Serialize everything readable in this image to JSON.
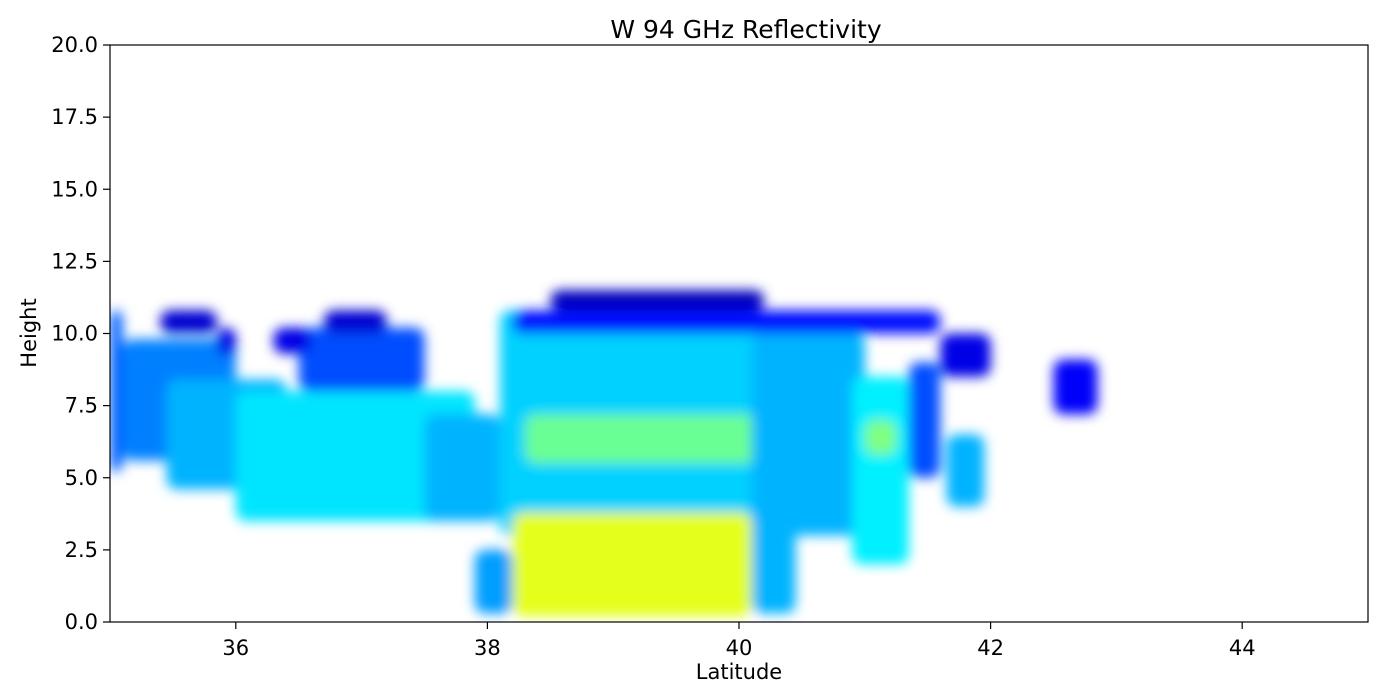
{
  "chart_data": {
    "type": "heatmap",
    "title": "W 94 GHz Reflectivity",
    "xlabel": "Latitude",
    "ylabel": "Height",
    "xlim": [
      35,
      45
    ],
    "ylim": [
      0,
      20
    ],
    "xticks": [
      "36",
      "38",
      "40",
      "42",
      "44"
    ],
    "xtick_values": [
      36,
      38,
      40,
      42,
      44
    ],
    "yticks": [
      "0.0",
      "2.5",
      "5.0",
      "7.5",
      "10.0",
      "12.5",
      "15.0",
      "17.5",
      "20.0"
    ],
    "ytick_values": [
      0,
      2.5,
      5,
      7.5,
      10,
      12.5,
      15,
      17.5,
      20
    ],
    "colormap": "jet",
    "grid": false,
    "colorbar": false,
    "regions": [
      {
        "x": [
          35.0,
          35.1
        ],
        "y": [
          5.2,
          10.8
        ],
        "level": 0.22
      },
      {
        "x": [
          35.1,
          36.0
        ],
        "y": [
          5.6,
          9.8
        ],
        "level": 0.25
      },
      {
        "x": [
          35.4,
          35.85
        ],
        "y": [
          10.0,
          10.8
        ],
        "level": 0.08
      },
      {
        "x": [
          35.85,
          36.0
        ],
        "y": [
          9.2,
          10.2
        ],
        "level": 0.1
      },
      {
        "x": [
          35.45,
          36.4
        ],
        "y": [
          4.6,
          8.4
        ],
        "level": 0.3
      },
      {
        "x": [
          36.0,
          37.9
        ],
        "y": [
          3.5,
          8.0
        ],
        "level": 0.35
      },
      {
        "x": [
          36.5,
          37.5
        ],
        "y": [
          8.0,
          10.2
        ],
        "level": 0.2
      },
      {
        "x": [
          36.7,
          37.2
        ],
        "y": [
          10.0,
          10.8
        ],
        "level": 0.08
      },
      {
        "x": [
          36.3,
          36.6
        ],
        "y": [
          9.3,
          10.2
        ],
        "level": 0.1
      },
      {
        "x": [
          37.5,
          38.1
        ],
        "y": [
          3.5,
          7.2
        ],
        "level": 0.3
      },
      {
        "x": [
          38.1,
          40.2
        ],
        "y": [
          3.0,
          10.8
        ],
        "level": 0.33
      },
      {
        "x": [
          38.3,
          40.2
        ],
        "y": [
          5.5,
          7.2
        ],
        "level": 0.48
      },
      {
        "x": [
          38.5,
          40.2
        ],
        "y": [
          10.8,
          11.5
        ],
        "level": 0.06
      },
      {
        "x": [
          38.2,
          41.6
        ],
        "y": [
          10.0,
          10.8
        ],
        "level": 0.14
      },
      {
        "x": [
          37.9,
          38.2
        ],
        "y": [
          0.3,
          2.5
        ],
        "level": 0.28
      },
      {
        "x": [
          38.2,
          40.1
        ],
        "y": [
          0.2,
          3.8
        ],
        "level": 0.6
      },
      {
        "x": [
          40.1,
          40.45
        ],
        "y": [
          0.3,
          3.5
        ],
        "level": 0.3
      },
      {
        "x": [
          40.1,
          41.0
        ],
        "y": [
          3.0,
          10.0
        ],
        "level": 0.3
      },
      {
        "x": [
          40.9,
          41.35
        ],
        "y": [
          2.0,
          8.5
        ],
        "level": 0.36
      },
      {
        "x": [
          41.0,
          41.25
        ],
        "y": [
          5.8,
          7.0
        ],
        "level": 0.5
      },
      {
        "x": [
          41.35,
          41.6
        ],
        "y": [
          5.0,
          9.0
        ],
        "level": 0.2
      },
      {
        "x": [
          41.6,
          42.0
        ],
        "y": [
          8.5,
          10.0
        ],
        "level": 0.1
      },
      {
        "x": [
          41.65,
          41.95
        ],
        "y": [
          4.0,
          6.5
        ],
        "level": 0.3
      },
      {
        "x": [
          42.5,
          42.85
        ],
        "y": [
          7.2,
          9.1
        ],
        "level": 0.12
      }
    ]
  }
}
